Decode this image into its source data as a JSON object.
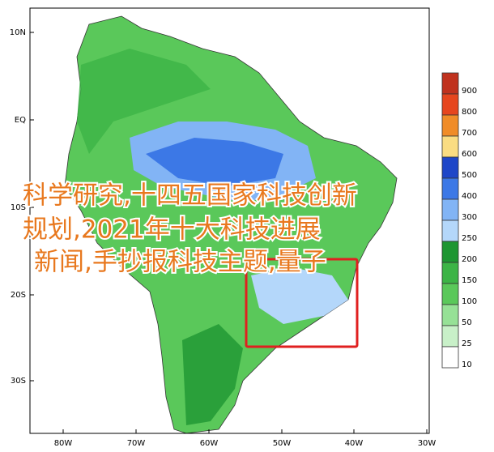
{
  "map": {
    "y_labels": [
      "10N",
      "EQ",
      "10S",
      "20S",
      "30S"
    ],
    "x_labels": [
      "80W",
      "70W",
      "60W",
      "50W",
      "40W",
      "30W"
    ],
    "legend": [
      {
        "value": 900,
        "color": "#c0321e"
      },
      {
        "value": 800,
        "color": "#e6461e"
      },
      {
        "value": 700,
        "color": "#f08c28"
      },
      {
        "value": 600,
        "color": "#fadc82"
      },
      {
        "value": 500,
        "color": "#1e46c8"
      },
      {
        "value": 400,
        "color": "#3c78e6"
      },
      {
        "value": 300,
        "color": "#82b4f5"
      },
      {
        "value": 250,
        "color": "#b4d7fa"
      },
      {
        "value": 200,
        "color": "#1e9632"
      },
      {
        "value": 150,
        "color": "#3cb446"
      },
      {
        "value": 100,
        "color": "#5ac85a"
      },
      {
        "value": 50,
        "color": "#96e196"
      },
      {
        "value": 25,
        "color": "#c8f0c8"
      },
      {
        "value": 10,
        "color": "#ffffff"
      }
    ]
  },
  "overlay": {
    "lines": [
      "科学研究,十四五国家科技创新",
      "规划,2021年十大科技进展",
      "新闻,手抄报科技主题,量子"
    ]
  }
}
